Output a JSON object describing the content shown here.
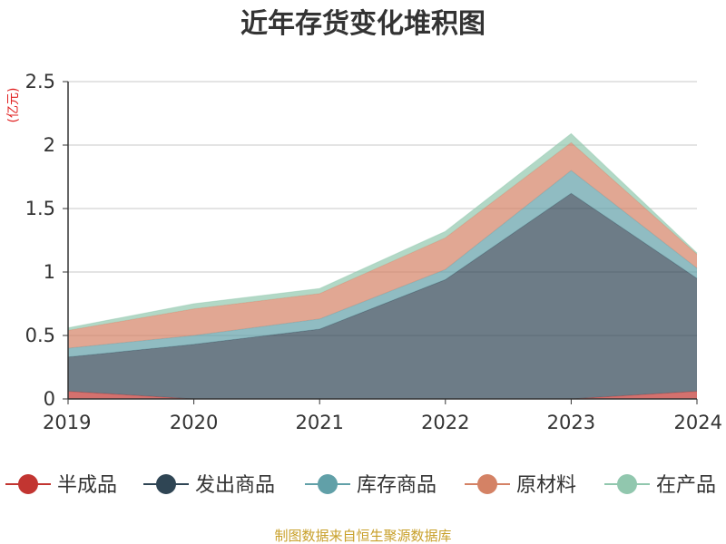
{
  "chart_data": {
    "type": "area",
    "title": "近年存货变化堆积图",
    "ylabel": "(亿元)",
    "xlabel": "",
    "x": [
      "2019",
      "2020",
      "2021",
      "2022",
      "2023",
      "2024"
    ],
    "ylim": [
      0,
      2.5
    ],
    "yticks": [
      "0",
      "0.5",
      "1",
      "1.5",
      "2",
      "2.5"
    ],
    "grid": true,
    "legend_position": "bottom",
    "series": [
      {
        "name": "半成品",
        "color": "#c23531",
        "values": [
          0.06,
          0.0,
          0.0,
          0.0,
          0.0,
          0.06
        ]
      },
      {
        "name": "发出商品",
        "color": "#2f4554",
        "values": [
          0.27,
          0.43,
          0.55,
          0.94,
          1.62,
          0.89
        ]
      },
      {
        "name": "库存商品",
        "color": "#61a0a8",
        "values": [
          0.07,
          0.07,
          0.08,
          0.08,
          0.18,
          0.08
        ]
      },
      {
        "name": "原材料",
        "color": "#d48265",
        "values": [
          0.14,
          0.21,
          0.2,
          0.25,
          0.22,
          0.11
        ]
      },
      {
        "name": "在产品",
        "color": "#91c7ae",
        "values": [
          0.02,
          0.04,
          0.04,
          0.05,
          0.07,
          0.01
        ]
      }
    ]
  },
  "source_text": "制图数据来自恒生聚源数据库"
}
